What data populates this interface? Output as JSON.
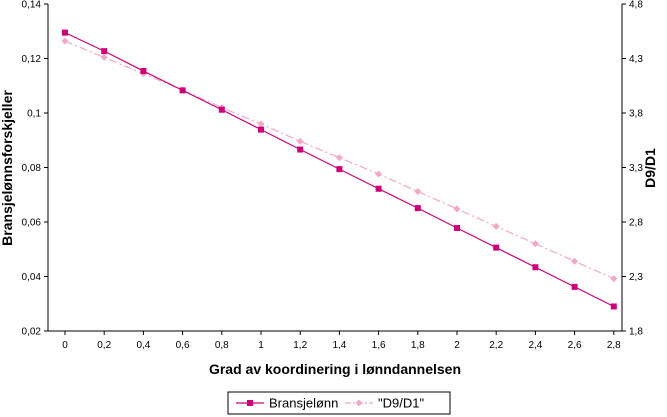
{
  "chart_data": {
    "type": "line",
    "xlabel": "Grad av koordinering i lønndannelsen",
    "ylabel_left": "Bransjelønnsforskjeller",
    "ylabel_right": "D9/D1",
    "x_ticks": [
      "0",
      "0,2",
      "0,4",
      "0,6",
      "0,8",
      "1",
      "1,2",
      "1,4",
      "1,6",
      "1,8",
      "2",
      "2,2",
      "2,4",
      "2,6",
      "2,8"
    ],
    "x": [
      0,
      0.2,
      0.4,
      0.6,
      0.8,
      1.0,
      1.2,
      1.4,
      1.6,
      1.8,
      2.0,
      2.2,
      2.4,
      2.6,
      2.8
    ],
    "y_left_ticks": [
      "0,02",
      "0,04",
      "0,06",
      "0,08",
      "0,1",
      "0,12",
      "0,14"
    ],
    "y_left_range": [
      0.02,
      0.14
    ],
    "y_right_ticks": [
      "1,8",
      "2,3",
      "2,8",
      "3,3",
      "3,8",
      "4,3",
      "4,8"
    ],
    "y_right_range": [
      1.8,
      4.8
    ],
    "grid": false,
    "legend_position": "bottom",
    "series": [
      {
        "name": "Bransjelønn",
        "axis": "left",
        "color": "#cc0077",
        "marker": "square",
        "line_style": "solid",
        "values": [
          0.1295,
          0.1227,
          0.1154,
          0.1083,
          0.1012,
          0.0939,
          0.0866,
          0.0794,
          0.0722,
          0.0651,
          0.0578,
          0.0506,
          0.0434,
          0.0362,
          0.029
        ]
      },
      {
        "name": "\"D9/D1\"",
        "axis": "right",
        "color": "#f0a8c8",
        "marker": "diamond",
        "line_style": "dash-dot",
        "values": [
          4.46,
          4.31,
          4.16,
          4.01,
          3.85,
          3.7,
          3.54,
          3.39,
          3.24,
          3.08,
          2.92,
          2.76,
          2.6,
          2.44,
          2.28
        ]
      }
    ]
  }
}
